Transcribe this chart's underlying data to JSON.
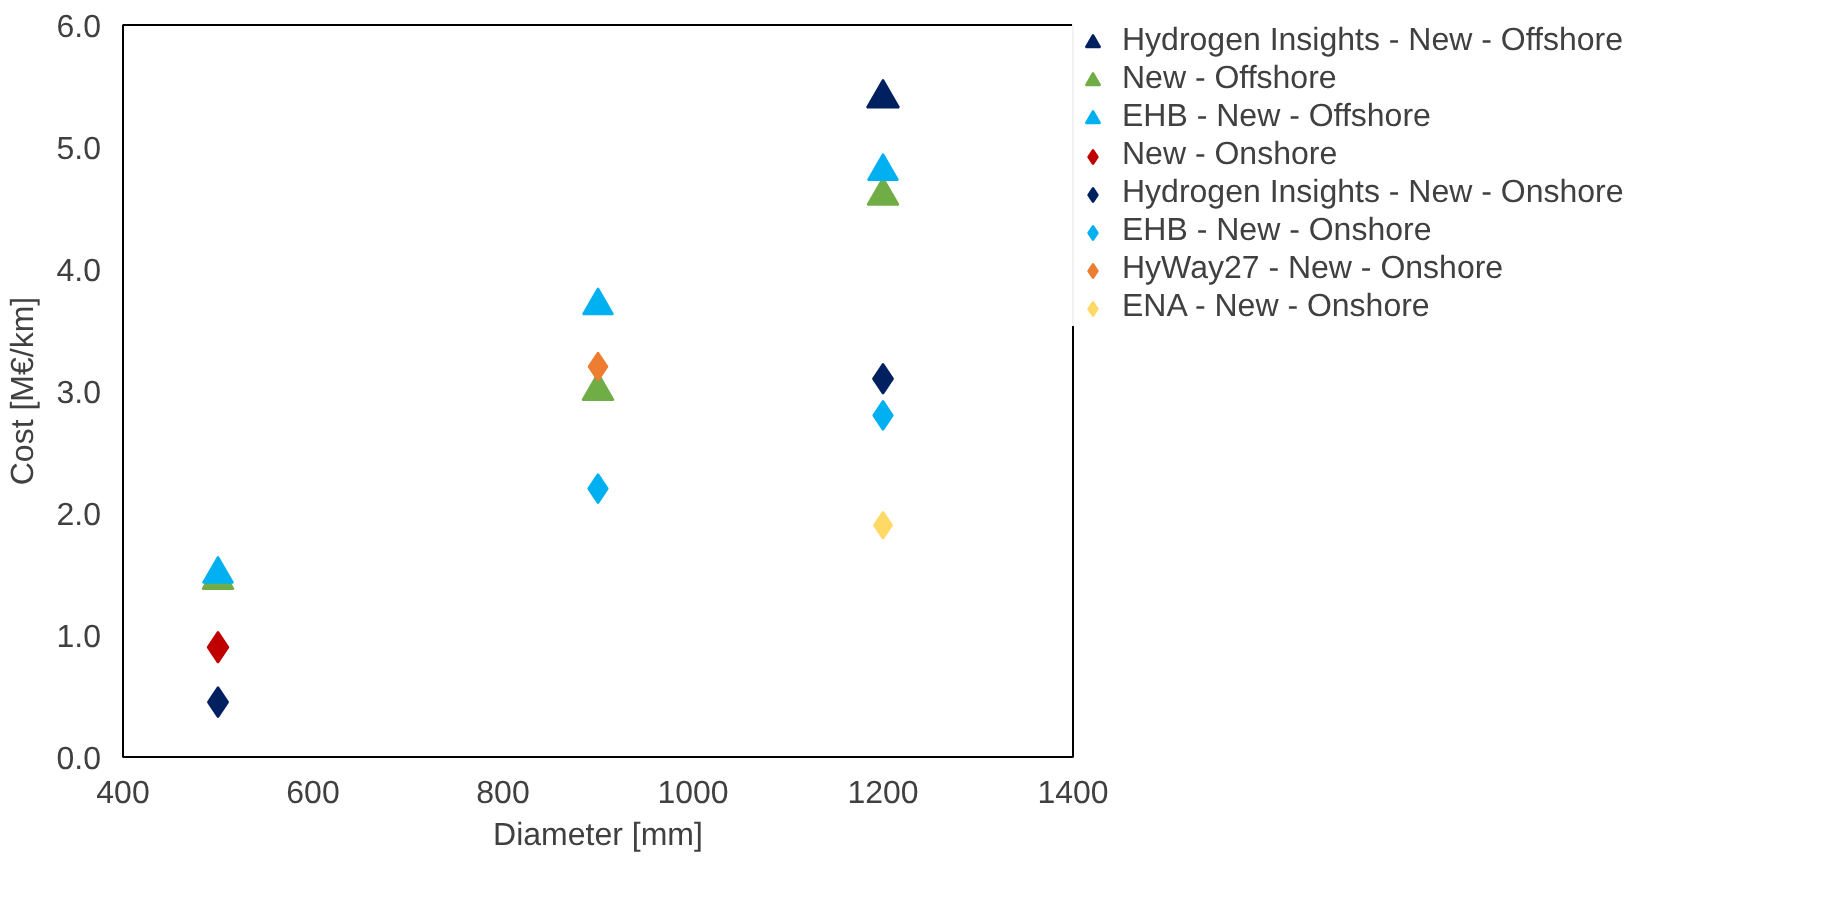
{
  "chart_data": {
    "type": "scatter",
    "xlabel": "Diameter [mm]",
    "ylabel": "Cost [M€/km]",
    "xlim": [
      400,
      1400
    ],
    "xticks": [
      400,
      600,
      800,
      1000,
      1200,
      1400
    ],
    "ylim": [
      0,
      6
    ],
    "yticks": [
      {
        "value": 0,
        "label": "0.0"
      },
      {
        "value": 1,
        "label": "1.0"
      },
      {
        "value": 2,
        "label": "2.0"
      },
      {
        "value": 3,
        "label": "3.0"
      },
      {
        "value": 4,
        "label": "4.0"
      },
      {
        "value": 5,
        "label": "5.0"
      },
      {
        "value": 6,
        "label": "6.0"
      }
    ],
    "grid": false,
    "legend": "right",
    "series": [
      {
        "name": "Hydrogen Insights - New - Offshore",
        "color": "#002060",
        "marker": "triangle",
        "x": [
          1200
        ],
        "values": [
          5.4
        ]
      },
      {
        "name": "New - Offshore",
        "color": "#70ad47",
        "marker": "triangle",
        "x": [
          500,
          900,
          1200
        ],
        "values": [
          1.45,
          3.0,
          4.6
        ]
      },
      {
        "name": "EHB - New - Offshore",
        "color": "#00b0f0",
        "marker": "triangle",
        "x": [
          500,
          900,
          1200
        ],
        "values": [
          1.5,
          3.7,
          4.8
        ]
      },
      {
        "name": "New - Onshore",
        "color": "#c00000",
        "marker": "diamond",
        "x": [
          500
        ],
        "values": [
          0.9
        ]
      },
      {
        "name": "Hydrogen Insights - New - Onshore",
        "color": "#002060",
        "marker": "diamond",
        "x": [
          500,
          1200
        ],
        "values": [
          0.45,
          3.1
        ]
      },
      {
        "name": "EHB - New - Onshore",
        "color": "#00b0f0",
        "marker": "diamond",
        "x": [
          900,
          1200
        ],
        "values": [
          2.2,
          2.8
        ]
      },
      {
        "name": "HyWay27 - New - Onshore",
        "color": "#ed7d31",
        "marker": "diamond",
        "x": [
          900
        ],
        "values": [
          3.2
        ]
      },
      {
        "name": "ENA - New - Onshore",
        "color": "#ffd966",
        "marker": "diamond",
        "x": [
          1200
        ],
        "values": [
          1.9
        ]
      }
    ]
  }
}
